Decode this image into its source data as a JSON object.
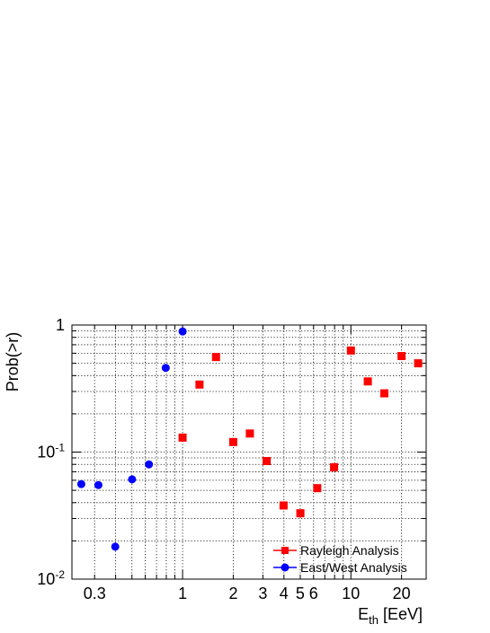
{
  "chart_data": {
    "type": "scatter",
    "xlabel_main": "E",
    "xlabel_sub": "th",
    "xlabel_unit": " [EeV]",
    "ylabel": "Prob(>r)",
    "x_scale": "log",
    "y_scale": "log",
    "xlim": [
      0.22,
      28
    ],
    "ylim": [
      0.01,
      1
    ],
    "grid": true,
    "legend_position": "bottom-right",
    "x_tick_labels": [
      {
        "value": 0.3,
        "label": "0.3"
      },
      {
        "value": 1,
        "label": "1"
      },
      {
        "value": 2,
        "label": "2"
      },
      {
        "value": 3,
        "label": "3"
      },
      {
        "value": 4,
        "label": "4"
      },
      {
        "value": 5,
        "label": "5"
      },
      {
        "value": 6,
        "label": "6"
      },
      {
        "value": 10,
        "label": "10"
      },
      {
        "value": 20,
        "label": "20"
      }
    ],
    "y_tick_labels": [
      {
        "value": 1,
        "base": "1",
        "exp": ""
      },
      {
        "value": 0.1,
        "base": "10",
        "exp": "-1"
      },
      {
        "value": 0.01,
        "base": "10",
        "exp": "-2"
      }
    ],
    "series": [
      {
        "name": "Rayleigh Analysis",
        "marker": "square",
        "color": "#ff0000",
        "x": [
          1.0,
          1.26,
          1.58,
          2.0,
          2.51,
          3.16,
          3.98,
          5.01,
          6.31,
          7.94,
          10.0,
          12.6,
          15.8,
          20.0,
          25.1
        ],
        "y": [
          0.13,
          0.34,
          0.56,
          0.12,
          0.14,
          0.085,
          0.038,
          0.033,
          0.052,
          0.076,
          0.63,
          0.36,
          0.29,
          0.57,
          0.5
        ]
      },
      {
        "name": "East/West Analysis",
        "marker": "circle",
        "color": "#0000ff",
        "x": [
          0.25,
          0.316,
          0.398,
          0.501,
          0.631,
          0.794,
          1.0
        ],
        "y": [
          0.056,
          0.055,
          0.018,
          0.061,
          0.08,
          0.46,
          0.89
        ]
      }
    ]
  }
}
